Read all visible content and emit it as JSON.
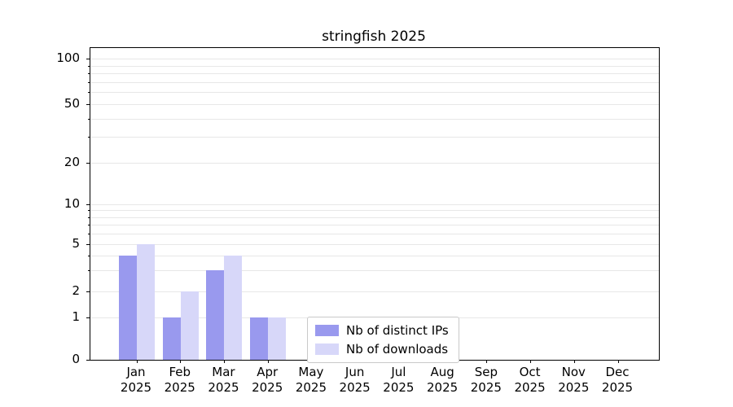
{
  "chart_data": {
    "type": "bar",
    "title": "stringfish 2025",
    "categories": [
      "Jan",
      "Feb",
      "Mar",
      "Apr",
      "May",
      "Jun",
      "Jul",
      "Aug",
      "Sep",
      "Oct",
      "Nov",
      "Dec"
    ],
    "year": "2025",
    "series": [
      {
        "name": "Nb of distinct IPs",
        "color": "#9999ee",
        "values": [
          4,
          1,
          3,
          1,
          0,
          0,
          0,
          0,
          0,
          0,
          0,
          0
        ]
      },
      {
        "name": "Nb of downloads",
        "color": "#d7d7f9",
        "values": [
          5,
          2,
          4,
          1,
          0,
          0,
          0,
          0,
          0,
          0,
          0,
          0
        ]
      }
    ],
    "y_ticks": [
      0,
      1,
      2,
      5,
      10,
      20,
      50,
      100
    ],
    "minor_gridlines": [
      3,
      4,
      6,
      7,
      8,
      9,
      30,
      40,
      60,
      70,
      80,
      90
    ],
    "ylim": [
      0,
      100
    ],
    "xlabel": "",
    "ylabel": "",
    "scale": "symlog",
    "grid": true,
    "legend_position": "bottom-center"
  }
}
